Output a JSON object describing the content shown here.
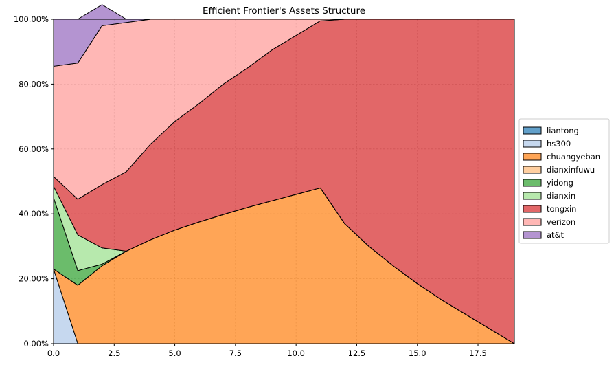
{
  "chart_data": {
    "type": "area",
    "stacked": true,
    "normalized": true,
    "title": "Efficient Frontier's Assets Structure",
    "xlabel": "",
    "ylabel": "",
    "xlim": [
      0,
      19
    ],
    "ylim": [
      0,
      1
    ],
    "x_ticks": [
      0,
      2.5,
      5,
      7.5,
      10,
      12.5,
      15,
      17.5
    ],
    "x_tick_labels": [
      "0.0",
      "2.5",
      "5.0",
      "7.5",
      "10.0",
      "12.5",
      "15.0",
      "17.5"
    ],
    "y_ticks": [
      0,
      0.2,
      0.4,
      0.6,
      0.8,
      1.0
    ],
    "y_tick_labels": [
      "0.00%",
      "20.00%",
      "40.00%",
      "60.00%",
      "80.00%",
      "100.00%"
    ],
    "grid": true,
    "legend_position": "outside-right",
    "x": [
      0,
      1,
      2,
      3,
      4,
      5,
      6,
      7,
      8,
      9,
      10,
      11,
      12,
      13,
      14,
      15,
      16,
      17,
      18,
      19
    ],
    "series": [
      {
        "name": "liantong",
        "color": "#1f77b4",
        "values": [
          0,
          0,
          0,
          0,
          0,
          0,
          0,
          0,
          0,
          0,
          0,
          0,
          0,
          0,
          0,
          0,
          0,
          0,
          0,
          0
        ]
      },
      {
        "name": "hs300",
        "color": "#aec7e8",
        "values": [
          0.23,
          0,
          0,
          0,
          0,
          0,
          0,
          0,
          0,
          0,
          0,
          0,
          0,
          0,
          0,
          0,
          0,
          0,
          0,
          0
        ]
      },
      {
        "name": "chuangyeban",
        "color": "#ff7f0e",
        "values": [
          0,
          0.18,
          0.24,
          0.285,
          0.32,
          0.35,
          0.375,
          0.398,
          0.42,
          0.44,
          0.46,
          0.48,
          0.37,
          0.3,
          0.24,
          0.185,
          0.135,
          0.09,
          0.045,
          0
        ]
      },
      {
        "name": "dianxinfuwu",
        "color": "#ffbb78",
        "values": [
          0,
          0,
          0,
          0,
          0,
          0,
          0,
          0,
          0,
          0,
          0,
          0,
          0,
          0,
          0,
          0,
          0,
          0,
          0,
          0
        ]
      },
      {
        "name": "yidong",
        "color": "#2ca02c",
        "values": [
          0.22,
          0.045,
          0.005,
          0,
          0,
          0,
          0,
          0,
          0,
          0,
          0,
          0,
          0,
          0,
          0,
          0,
          0,
          0,
          0,
          0
        ]
      },
      {
        "name": "dianxin",
        "color": "#98df8a",
        "values": [
          0.035,
          0.11,
          0.05,
          0,
          0,
          0,
          0,
          0,
          0,
          0,
          0,
          0,
          0,
          0,
          0,
          0,
          0,
          0,
          0,
          0
        ]
      },
      {
        "name": "tongxin",
        "color": "#d62728",
        "values": [
          0.03,
          0.11,
          0.195,
          0.245,
          0.295,
          0.335,
          0.365,
          0.402,
          0.43,
          0.465,
          0.49,
          0.515,
          0.63,
          0.7,
          0.76,
          0.815,
          0.865,
          0.91,
          0.955,
          1.0
        ]
      },
      {
        "name": "verizon",
        "color": "#ff9896",
        "values": [
          0.34,
          0.42,
          0.49,
          0.46,
          0.385,
          0.315,
          0.26,
          0.2,
          0.15,
          0.095,
          0.05,
          0.005,
          0,
          0,
          0,
          0,
          0,
          0,
          0,
          0
        ]
      },
      {
        "name": "at&t",
        "color": "#9467bd",
        "values": [
          0.145,
          0.135,
          0.065,
          0.01,
          0,
          0,
          0,
          0,
          0,
          0,
          0,
          0,
          0,
          0,
          0,
          0,
          0,
          0,
          0,
          0
        ]
      }
    ]
  }
}
